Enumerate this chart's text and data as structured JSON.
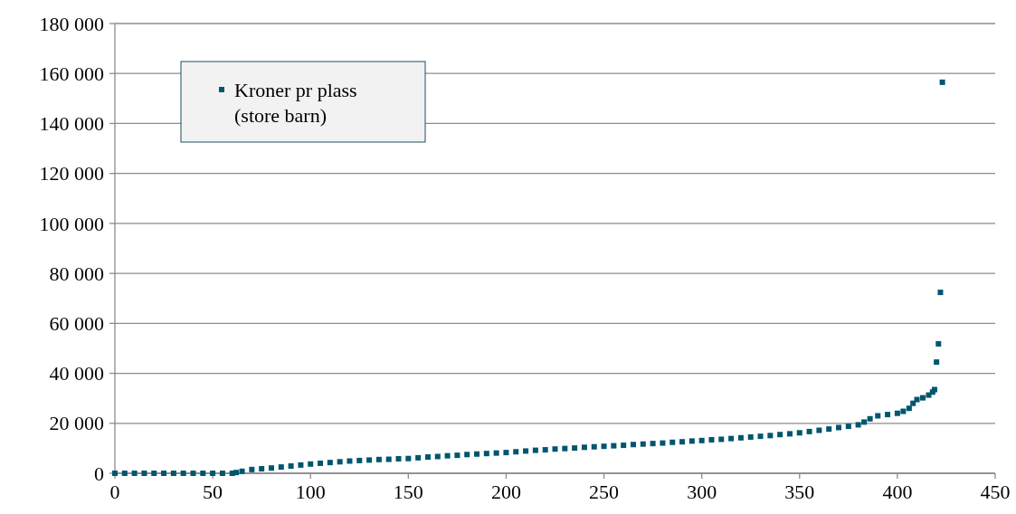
{
  "chart_data": {
    "type": "scatter",
    "marker": "square",
    "grid": "y",
    "legend": "top left",
    "xlim": [
      0,
      450
    ],
    "xticks": [
      0,
      50,
      100,
      150,
      200,
      250,
      300,
      350,
      400,
      450
    ],
    "ylim": [
      0,
      180000
    ],
    "yticks": [
      {
        "value": 0,
        "label": "0"
      },
      {
        "value": 20000,
        "label": "20 000"
      },
      {
        "value": 40000,
        "label": "40 000"
      },
      {
        "value": 60000,
        "label": "60 000"
      },
      {
        "value": 80000,
        "label": "80 000"
      },
      {
        "value": 100000,
        "label": "100 000"
      },
      {
        "value": 120000,
        "label": "120 000"
      },
      {
        "value": 140000,
        "label": "140 000"
      },
      {
        "value": 160000,
        "label": "160 000"
      },
      {
        "value": 180000,
        "label": "180 000"
      }
    ],
    "series": [
      {
        "name": "Kroner pr plass (store barn)",
        "color": "#00566e",
        "x": [
          0,
          5,
          10,
          15,
          20,
          25,
          30,
          35,
          40,
          45,
          50,
          55,
          60,
          62,
          65,
          70,
          75,
          80,
          85,
          90,
          95,
          100,
          105,
          110,
          115,
          120,
          125,
          130,
          135,
          140,
          145,
          150,
          155,
          160,
          165,
          170,
          175,
          180,
          185,
          190,
          195,
          200,
          205,
          210,
          215,
          220,
          225,
          230,
          235,
          240,
          245,
          250,
          255,
          260,
          265,
          270,
          275,
          280,
          285,
          290,
          295,
          300,
          305,
          310,
          315,
          320,
          325,
          330,
          335,
          340,
          345,
          350,
          355,
          360,
          365,
          370,
          375,
          380,
          383,
          386,
          390,
          395,
          400,
          403,
          406,
          408,
          410,
          413,
          416,
          418,
          419,
          420,
          421,
          422,
          423
        ],
        "values": [
          0,
          0,
          0,
          0,
          0,
          0,
          0,
          0,
          0,
          0,
          0,
          0,
          0,
          300,
          800,
          1500,
          1800,
          2100,
          2500,
          2900,
          3300,
          3700,
          4000,
          4300,
          4600,
          4900,
          5100,
          5300,
          5500,
          5600,
          5800,
          5900,
          6200,
          6500,
          6700,
          7000,
          7200,
          7500,
          7700,
          7900,
          8100,
          8300,
          8600,
          8900,
          9200,
          9400,
          9700,
          9900,
          10100,
          10400,
          10600,
          10800,
          11000,
          11200,
          11500,
          11700,
          11900,
          12100,
          12400,
          12600,
          12900,
          13100,
          13400,
          13600,
          13900,
          14200,
          14500,
          14800,
          15100,
          15500,
          15800,
          16200,
          16700,
          17200,
          17700,
          18300,
          18800,
          19400,
          20500,
          21800,
          23000,
          23500,
          24000,
          24800,
          26000,
          28000,
          29500,
          30200,
          31300,
          32500,
          33500,
          44500,
          51800,
          72400,
          156500
        ]
      }
    ]
  }
}
